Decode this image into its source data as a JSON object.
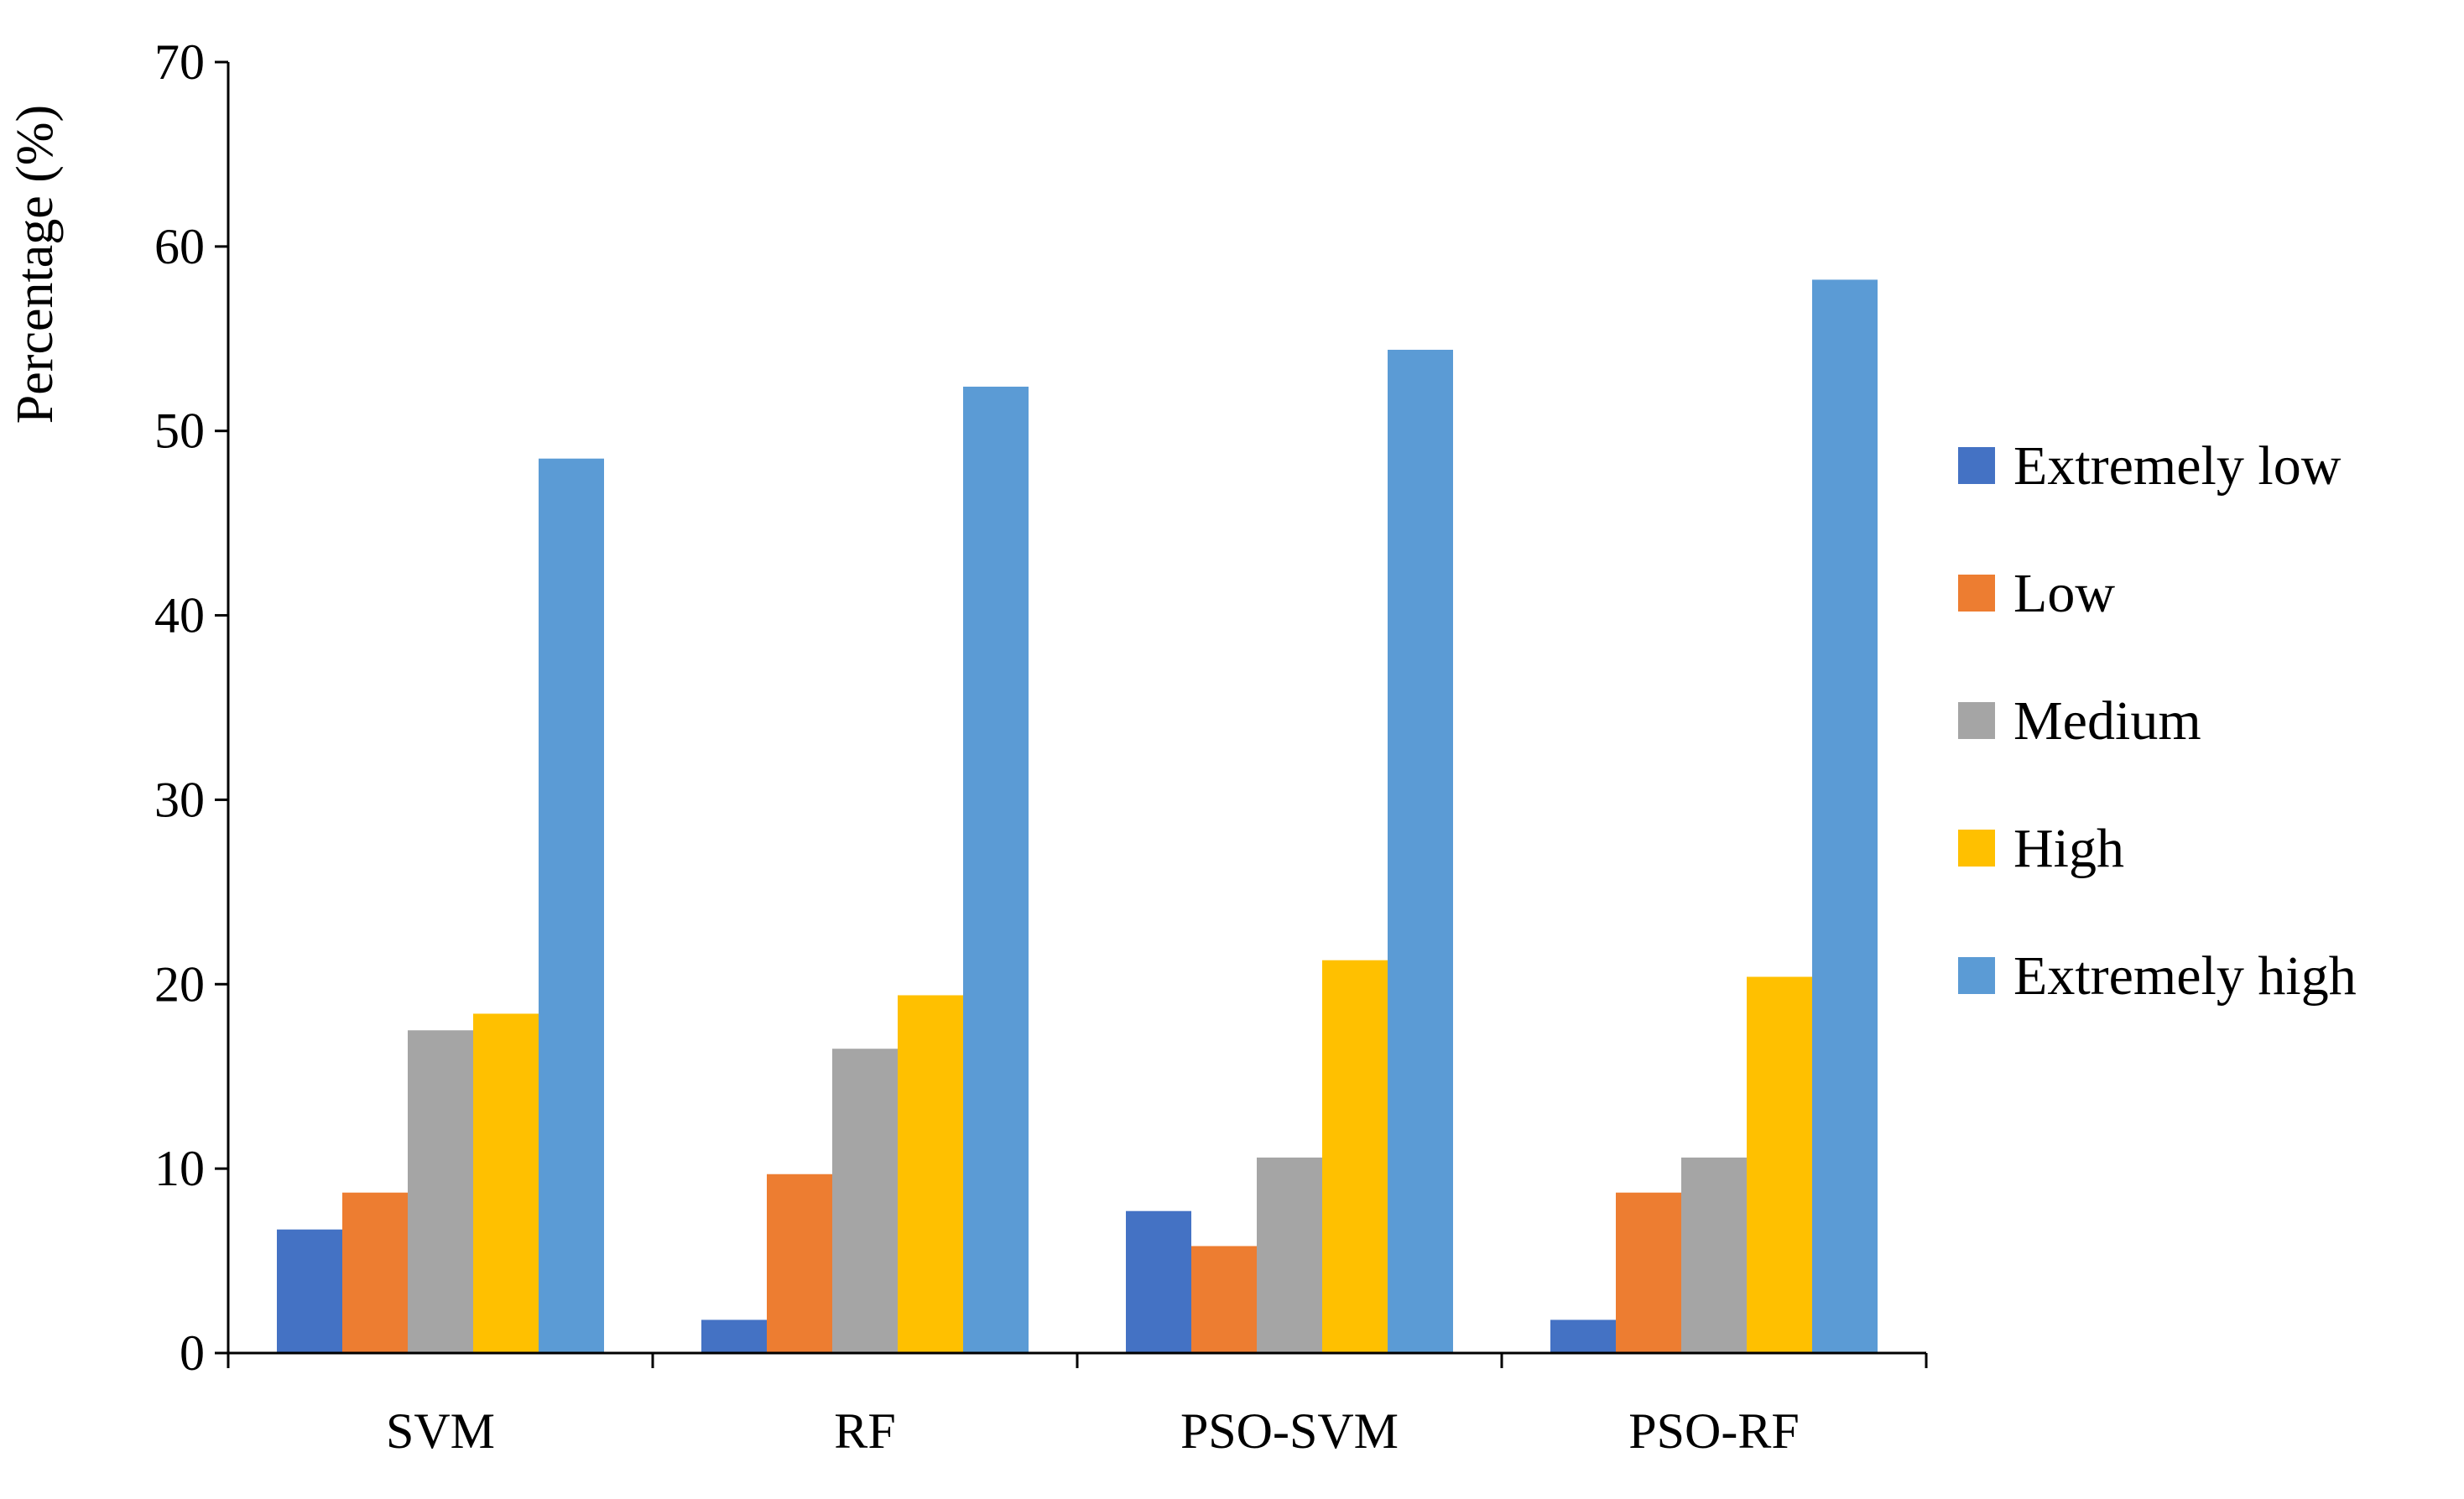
{
  "chart_data": {
    "type": "bar",
    "title": "",
    "xlabel": "",
    "ylabel": "Percentage (%)",
    "ylim": [
      0,
      70
    ],
    "yticks": [
      0,
      10,
      20,
      30,
      40,
      50,
      60,
      70
    ],
    "grid": false,
    "legend_position": "right",
    "categories": [
      "SVM",
      "RF",
      "PSO-SVM",
      "PSO-RF"
    ],
    "series": [
      {
        "name": "Extremely low",
        "color": "#4472C4",
        "values": [
          6.7,
          1.8,
          7.7,
          1.8
        ]
      },
      {
        "name": "Low",
        "color": "#ED7D31",
        "values": [
          8.7,
          9.7,
          5.8,
          8.7
        ]
      },
      {
        "name": "Medium",
        "color": "#A5A5A5",
        "values": [
          17.5,
          16.5,
          10.6,
          10.6
        ]
      },
      {
        "name": "High",
        "color": "#FFC000",
        "values": [
          18.4,
          19.4,
          21.3,
          20.4
        ]
      },
      {
        "name": "Extremely high",
        "color": "#5B9BD5",
        "values": [
          48.5,
          52.4,
          54.4,
          58.2
        ]
      }
    ]
  }
}
